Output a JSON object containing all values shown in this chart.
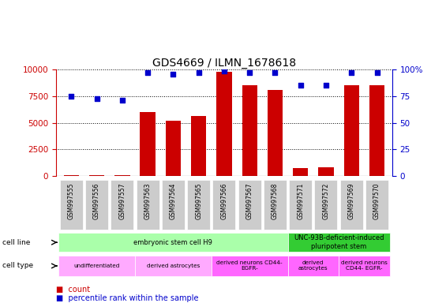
{
  "title": "GDS4669 / ILMN_1678618",
  "samples": [
    "GSM997555",
    "GSM997556",
    "GSM997557",
    "GSM997563",
    "GSM997564",
    "GSM997565",
    "GSM997566",
    "GSM997567",
    "GSM997568",
    "GSM997571",
    "GSM997572",
    "GSM997569",
    "GSM997570"
  ],
  "counts": [
    60,
    80,
    60,
    6000,
    5200,
    5600,
    9800,
    8500,
    8100,
    700,
    800,
    8500,
    8500
  ],
  "percentiles": [
    75,
    73,
    71,
    97,
    96,
    97,
    99,
    97,
    97,
    85,
    85,
    97,
    97
  ],
  "bar_color": "#cc0000",
  "dot_color": "#0000cc",
  "ylim_left": [
    0,
    10000
  ],
  "ylim_right": [
    0,
    100
  ],
  "yticks_left": [
    0,
    2500,
    5000,
    7500,
    10000
  ],
  "yticks_right": [
    0,
    25,
    50,
    75,
    100
  ],
  "cell_line_segments": [
    {
      "label": "embryonic stem cell H9",
      "start": 0,
      "end": 9,
      "color": "#aaffaa"
    },
    {
      "label": "UNC-93B-deficient-induced\npluripotent stem",
      "start": 9,
      "end": 13,
      "color": "#33cc33"
    }
  ],
  "cell_type_segments": [
    {
      "label": "undifferentiated",
      "start": 0,
      "end": 3,
      "color": "#ffaaff"
    },
    {
      "label": "derived astrocytes",
      "start": 3,
      "end": 6,
      "color": "#ffaaff"
    },
    {
      "label": "derived neurons CD44-\nEGFR-",
      "start": 6,
      "end": 9,
      "color": "#ff66ff"
    },
    {
      "label": "derived\nastrocytes",
      "start": 9,
      "end": 11,
      "color": "#ff66ff"
    },
    {
      "label": "derived neurons\nCD44- EGFR-",
      "start": 11,
      "end": 13,
      "color": "#ff66ff"
    }
  ],
  "bar_color_hex": "#cc0000",
  "dot_color_hex": "#0000cc",
  "left_axis_color": "#cc0000",
  "right_axis_color": "#0000cc",
  "tick_bg_color": "#cccccc"
}
